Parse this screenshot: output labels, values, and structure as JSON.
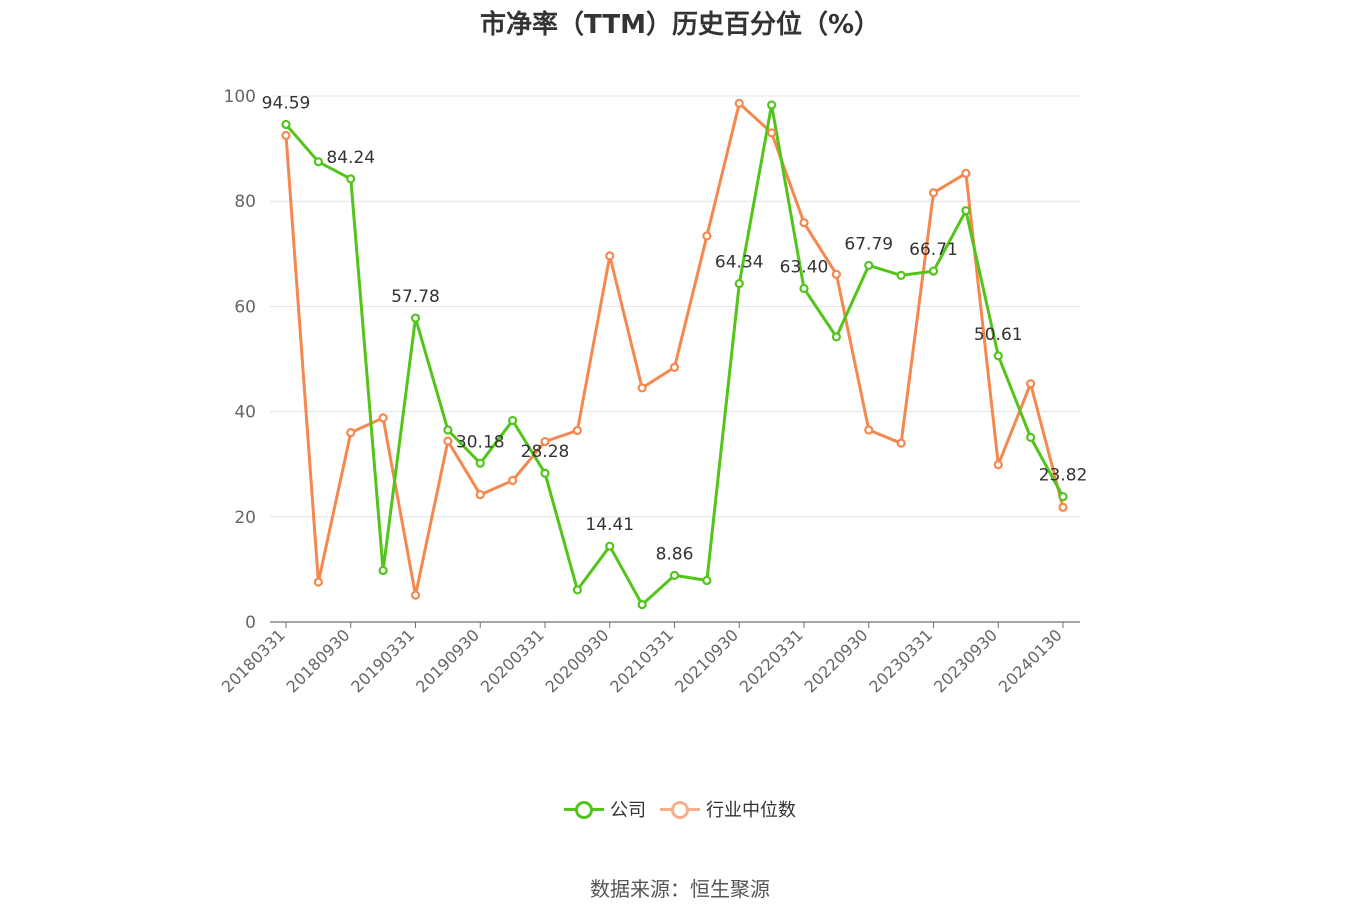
{
  "chart_data": {
    "type": "line",
    "title": "市净率（TTM）历史百分位（%）",
    "source": "数据来源：恒生聚源",
    "ylim": [
      0,
      100
    ],
    "yticks": [
      0,
      20,
      40,
      60,
      80,
      100
    ],
    "grid": true,
    "legend_position": "bottom",
    "x": [
      "20180331",
      "20180630",
      "20180930",
      "20181231",
      "20190331",
      "20190630",
      "20190930",
      "20191231",
      "20200331",
      "20200630",
      "20200930",
      "20201231",
      "20210331",
      "20210630",
      "20210930",
      "20211231",
      "20220331",
      "20220630",
      "20220930",
      "20221231",
      "20230331",
      "20230630",
      "20230930",
      "20231231",
      "20240130"
    ],
    "xtick_labels": [
      "20180331",
      "20180930",
      "20190331",
      "20190930",
      "20200331",
      "20200930",
      "20210331",
      "20210930",
      "20220331",
      "20220930",
      "20230331",
      "20230930",
      "20240130"
    ],
    "series": [
      {
        "name": "公司",
        "color": "#52c41a",
        "values": [
          94.59,
          87.5,
          84.24,
          9.8,
          57.78,
          36.5,
          30.18,
          38.3,
          28.28,
          6.1,
          14.41,
          3.3,
          8.86,
          7.9,
          64.34,
          98.3,
          63.4,
          54.2,
          67.79,
          65.9,
          66.71,
          78.2,
          50.61,
          35.1,
          23.82
        ],
        "labels": [
          "94.59",
          "",
          "84.24",
          "",
          "57.78",
          "",
          "30.18",
          "",
          "28.28",
          "",
          "14.41",
          "",
          "8.86",
          "",
          "64.34",
          "",
          "63.40",
          "",
          "67.79",
          "",
          "66.71",
          "",
          "50.61",
          "",
          "23.82"
        ]
      },
      {
        "name": "行业中位数",
        "color": "#f5884f",
        "values": [
          92.5,
          7.6,
          36.0,
          38.8,
          5.1,
          34.4,
          24.2,
          26.9,
          34.3,
          36.4,
          69.6,
          44.5,
          48.4,
          73.4,
          98.6,
          93.0,
          75.9,
          66.1,
          36.5,
          34.0,
          81.6,
          85.3,
          29.9,
          45.3,
          21.8
        ]
      }
    ]
  }
}
